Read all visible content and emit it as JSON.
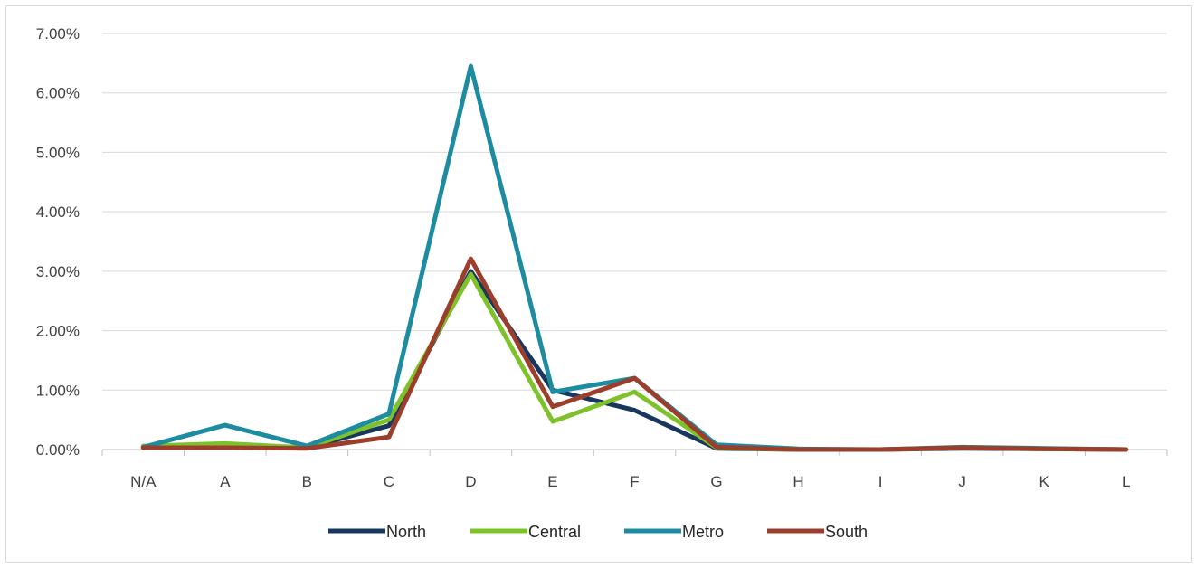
{
  "chart_data": {
    "type": "line",
    "categories": [
      "N/A",
      "A",
      "B",
      "C",
      "D",
      "E",
      "F",
      "G",
      "H",
      "I",
      "J",
      "K",
      "L"
    ],
    "ylim": [
      0,
      0.07
    ],
    "yticks": [
      "0.00%",
      "1.00%",
      "2.00%",
      "3.00%",
      "4.00%",
      "5.00%",
      "6.00%",
      "7.00%"
    ],
    "grid": true,
    "legend_position": "bottom",
    "series": [
      {
        "name": "North",
        "color": "#17375e",
        "values": [
          0.0004,
          0.0005,
          0.0003,
          0.004,
          0.03,
          0.01,
          0.0066,
          0.0002,
          0.0,
          0.0,
          0.0002,
          0.0001,
          0.0
        ]
      },
      {
        "name": "Central",
        "color": "#7ec229",
        "values": [
          0.0006,
          0.001,
          0.0003,
          0.005,
          0.0295,
          0.0047,
          0.0097,
          0.0003,
          0.0,
          0.0,
          0.0003,
          0.0001,
          0.0
        ]
      },
      {
        "name": "Metro",
        "color": "#1d8ba0",
        "values": [
          0.0004,
          0.0041,
          0.0006,
          0.006,
          0.0645,
          0.0097,
          0.012,
          0.0008,
          0.0001,
          0.0,
          0.0004,
          0.0002,
          0.0
        ]
      },
      {
        "name": "South",
        "color": "#9c3e2c",
        "values": [
          0.0003,
          0.0003,
          0.0002,
          0.0021,
          0.0321,
          0.0072,
          0.012,
          0.0004,
          0.0,
          0.0,
          0.0003,
          0.0001,
          0.0
        ]
      }
    ]
  }
}
